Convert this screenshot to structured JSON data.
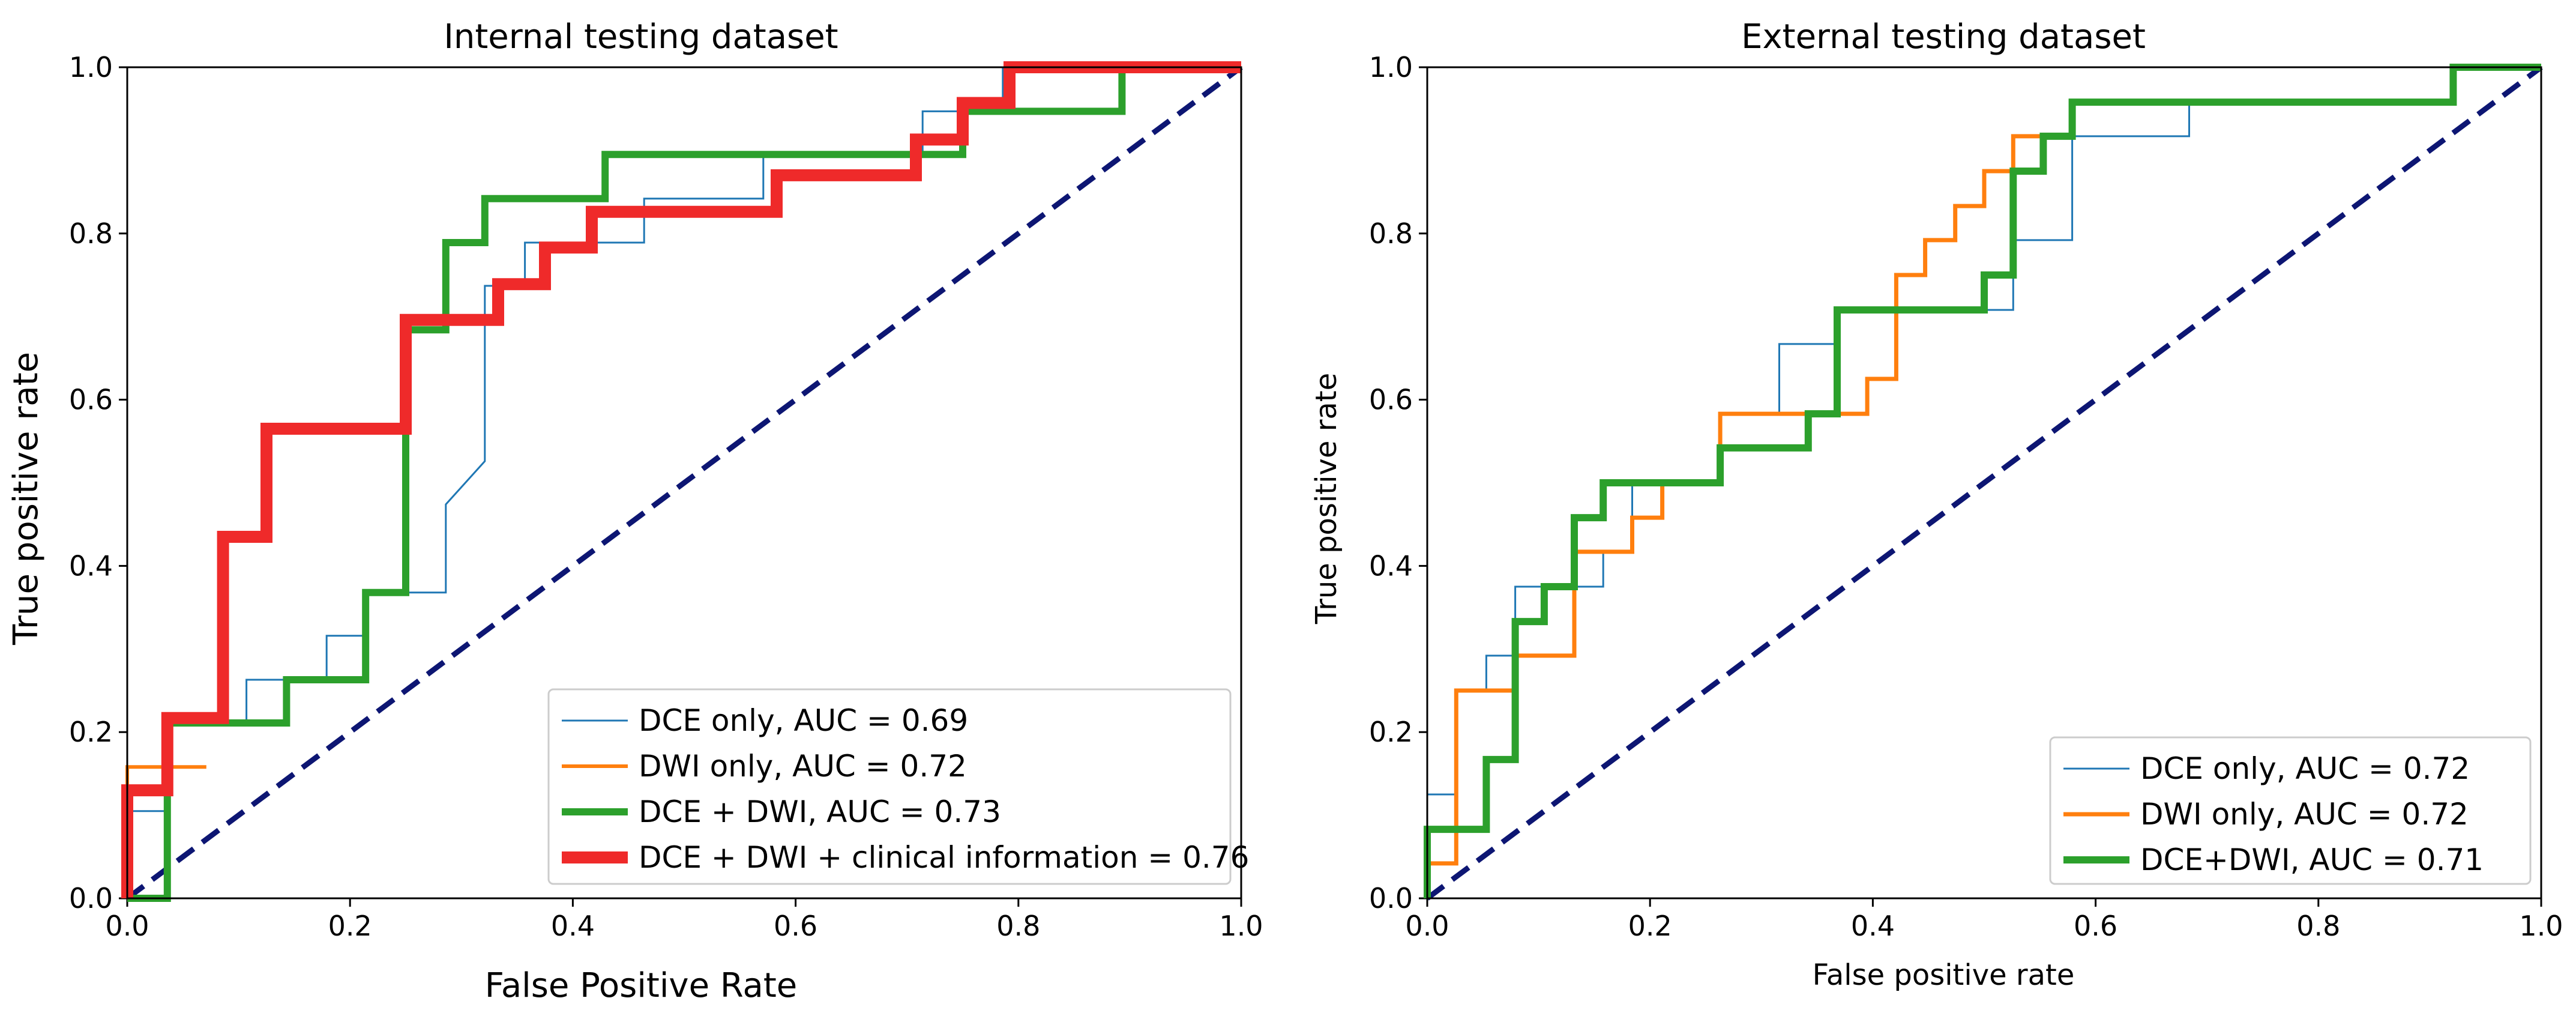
{
  "chart_data": [
    {
      "type": "line",
      "title": "Internal testing dataset",
      "xlabel": "False Positive Rate",
      "ylabel": "True positive rate",
      "xlim": [
        0,
        1
      ],
      "ylim": [
        0,
        1
      ],
      "xticks": [
        "0.0",
        "0.2",
        "0.4",
        "0.6",
        "0.8",
        "1.0"
      ],
      "yticks": [
        "0.0",
        "0.2",
        "0.4",
        "0.6",
        "0.8",
        "1.0"
      ],
      "grid": false,
      "legend_position": "lower-right",
      "chance_line": {
        "color": "#0d1673",
        "style": "dashed"
      },
      "series": [
        {
          "name": "DCE only, AUC = 0.69",
          "color": "#1f77b4",
          "weight": "thin",
          "x": [
            0,
            0,
            0.036,
            0.036,
            0.071,
            0.071,
            0.107,
            0.107,
            0.179,
            0.179,
            0.214,
            0.214,
            0.25,
            0.25,
            0.286,
            0.286,
            0.321,
            0.321,
            0.357,
            0.357,
            0.393,
            0.393,
            0.464,
            0.464,
            0.571,
            0.571,
            0.714,
            0.714,
            0.786,
            0.786,
            1.0
          ],
          "y": [
            0,
            0.105,
            0.105,
            0.211,
            0.211,
            0.211,
            0.211,
            0.263,
            0.263,
            0.316,
            0.316,
            0.368,
            0.368,
            0.368,
            0.368,
            0.474,
            0.526,
            0.737,
            0.737,
            0.789,
            0.789,
            0.789,
            0.789,
            0.842,
            0.842,
            0.895,
            0.895,
            0.947,
            0.947,
            1.0,
            1.0
          ]
        },
        {
          "name": "DWI only, AUC = 0.72",
          "color": "#ff7f0e",
          "weight": "medium",
          "x": [
            0,
            0,
            0.071,
            0.071,
            0.071,
            0.071,
            0.071,
            0.071,
            0.071,
            0.071,
            0.071,
            0.071,
            0.071,
            0.071,
            0.071,
            0.071,
            0.071,
            0.071,
            0.071,
            0.071,
            0.071,
            0.071,
            0.071,
            0.071,
            0.071,
            0.071,
            0.071,
            0.071,
            0.071,
            0.071,
            0.071,
            0.071,
            0.071,
            0.071
          ],
          "y": [
            0,
            0.158,
            0.158,
            0.158,
            0.158,
            0.158,
            0.158,
            0.158,
            0.158,
            0.158,
            0.158,
            0.158,
            0.158,
            0.158,
            0.158,
            0.158,
            0.158,
            0.158,
            0.158,
            0.158,
            0.158,
            0.158,
            0.158,
            0.158,
            0.158,
            0.158,
            0.158,
            0.158,
            0.158,
            0.158,
            0.158,
            0.158,
            0.158,
            0.158
          ]
        },
        {
          "name": "DCE + DWI, AUC = 0.73",
          "color": "#2ca02c",
          "weight": "thick",
          "x": [
            0,
            0,
            0.036,
            0.036,
            0.143,
            0.143,
            0.214,
            0.214,
            0.25,
            0.25,
            0.286,
            0.286,
            0.321,
            0.321,
            0.429,
            0.429,
            0.75,
            0.75,
            0.893,
            0.893,
            1.0
          ],
          "y": [
            0,
            0.0,
            0.0,
            0.211,
            0.211,
            0.263,
            0.263,
            0.368,
            0.368,
            0.684,
            0.684,
            0.789,
            0.789,
            0.842,
            0.842,
            0.895,
            0.895,
            0.947,
            0.947,
            1.0,
            1.0
          ]
        },
        {
          "name": "DCE + DWI + clinical information = 0.76",
          "color": "#ef2a2a",
          "weight": "extra-thick",
          "x": [
            0,
            0,
            0.036,
            0.036,
            0.086,
            0.086,
            0.125,
            0.125,
            0.25,
            0.25,
            0.333,
            0.333,
            0.375,
            0.375,
            0.417,
            0.417,
            0.583,
            0.583,
            0.708,
            0.708,
            0.75,
            0.75,
            0.792,
            0.792,
            1.0
          ],
          "y": [
            0,
            0.13,
            0.13,
            0.217,
            0.217,
            0.435,
            0.435,
            0.565,
            0.565,
            0.696,
            0.696,
            0.739,
            0.739,
            0.783,
            0.783,
            0.826,
            0.826,
            0.87,
            0.87,
            0.913,
            0.913,
            0.957,
            0.957,
            1.0,
            1.0
          ]
        }
      ]
    },
    {
      "type": "line",
      "title": "External testing dataset",
      "xlabel": "False positive rate",
      "ylabel": "True positive rate",
      "xlim": [
        0,
        1
      ],
      "ylim": [
        0,
        1
      ],
      "xticks": [
        "0.0",
        "0.2",
        "0.4",
        "0.6",
        "0.8",
        "1.0"
      ],
      "yticks": [
        "0.0",
        "0.2",
        "0.4",
        "0.6",
        "0.8",
        "1.0"
      ],
      "grid": false,
      "legend_position": "lower-right",
      "chance_line": {
        "color": "#0d1673",
        "style": "dashed"
      },
      "series": [
        {
          "name": "DCE only, AUC = 0.72",
          "color": "#1f77b4",
          "weight": "thin",
          "x": [
            0,
            0,
            0.026,
            0.026,
            0.053,
            0.053,
            0.079,
            0.079,
            0.158,
            0.158,
            0.184,
            0.184,
            0.263,
            0.263,
            0.316,
            0.316,
            0.368,
            0.368,
            0.526,
            0.526,
            0.579,
            0.579,
            0.684,
            0.684,
            0.921,
            0.921,
            1.0
          ],
          "y": [
            0,
            0.125,
            0.125,
            0.25,
            0.25,
            0.292,
            0.292,
            0.375,
            0.375,
            0.417,
            0.417,
            0.5,
            0.5,
            0.583,
            0.583,
            0.667,
            0.667,
            0.708,
            0.708,
            0.792,
            0.792,
            0.917,
            0.917,
            0.958,
            0.958,
            1.0,
            1.0
          ]
        },
        {
          "name": "DWI only, AUC = 0.72",
          "color": "#ff7f0e",
          "weight": "medium",
          "x": [
            0,
            0,
            0.026,
            0.026,
            0.079,
            0.079,
            0.132,
            0.132,
            0.184,
            0.184,
            0.211,
            0.211,
            0.263,
            0.263,
            0.395,
            0.395,
            0.421,
            0.421,
            0.447,
            0.447,
            0.474,
            0.474,
            0.5,
            0.5,
            0.526,
            0.526,
            0.579,
            0.579,
            0.605,
            0.605,
            0.921,
            0.921,
            0.947,
            0.947,
            1.0
          ],
          "y": [
            0,
            0.042,
            0.042,
            0.25,
            0.25,
            0.292,
            0.292,
            0.417,
            0.417,
            0.458,
            0.458,
            0.5,
            0.5,
            0.583,
            0.583,
            0.625,
            0.625,
            0.75,
            0.75,
            0.792,
            0.792,
            0.833,
            0.833,
            0.875,
            0.875,
            0.917,
            0.917,
            0.958,
            0.958,
            0.958,
            0.958,
            1.0,
            1.0,
            1.0,
            1.0
          ]
        },
        {
          "name": "DCE+DWI, AUC = 0.71",
          "color": "#2ca02c",
          "weight": "thick",
          "x": [
            0,
            0,
            0.053,
            0.053,
            0.079,
            0.079,
            0.105,
            0.105,
            0.132,
            0.132,
            0.158,
            0.158,
            0.263,
            0.263,
            0.342,
            0.342,
            0.368,
            0.368,
            0.5,
            0.5,
            0.526,
            0.526,
            0.553,
            0.553,
            0.579,
            0.579,
            0.605,
            0.605,
            0.921,
            0.921,
            1.0
          ],
          "y": [
            0,
            0.083,
            0.083,
            0.167,
            0.167,
            0.333,
            0.333,
            0.375,
            0.375,
            0.458,
            0.458,
            0.5,
            0.5,
            0.542,
            0.542,
            0.583,
            0.583,
            0.708,
            0.708,
            0.75,
            0.75,
            0.875,
            0.875,
            0.917,
            0.917,
            0.958,
            0.958,
            0.958,
            0.958,
            1.0,
            1.0
          ]
        }
      ]
    }
  ]
}
